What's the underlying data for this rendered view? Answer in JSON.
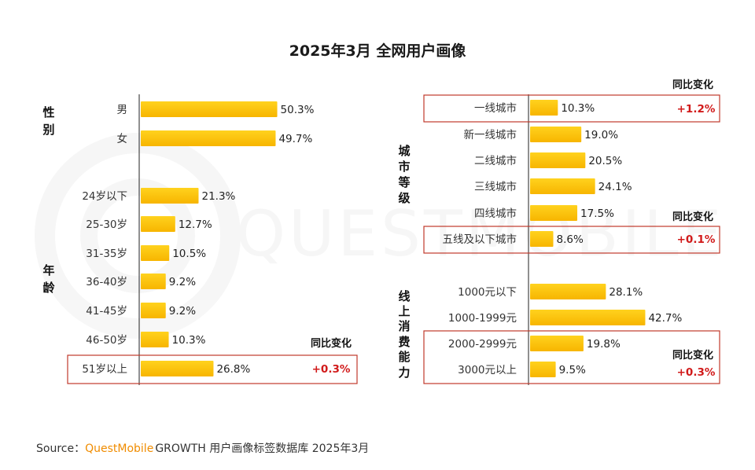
{
  "title": "2025年3月 全网用户画像",
  "source": {
    "prefix": "Source：",
    "brand": "QuestMobile",
    "rest": "GROWTH 用户画像标签数据库 2025年3月"
  },
  "watermark": "QUESTMOBILE",
  "colors": {
    "bar_top": "#ffd21e",
    "bar_bottom": "#f7b500",
    "highlight_border": "#c0392b",
    "change_text": "#d11a1a"
  },
  "chart_data": [
    {
      "type": "bar",
      "orientation": "horizontal",
      "panel": "left",
      "groups": [
        {
          "label": "性别",
          "categories": [
            "男",
            "女"
          ],
          "values": [
            50.3,
            49.7
          ],
          "value_labels": [
            "50.3%",
            "49.7%"
          ]
        },
        {
          "label": "年龄",
          "categories": [
            "24岁以下",
            "25-30岁",
            "31-35岁",
            "36-40岁",
            "41-45岁",
            "46-50岁",
            "51岁以上"
          ],
          "values": [
            21.3,
            12.7,
            10.5,
            9.2,
            9.2,
            10.3,
            26.8
          ],
          "value_labels": [
            "21.3%",
            "12.7%",
            "10.5%",
            "9.2%",
            "9.2%",
            "10.3%",
            "26.8%"
          ]
        }
      ],
      "yoy_header": "同比变化",
      "highlights": [
        {
          "category": "51岁以上",
          "yoy_change": "+0.3%"
        }
      ]
    },
    {
      "type": "bar",
      "orientation": "horizontal",
      "panel": "right",
      "groups": [
        {
          "label": "城市等级",
          "categories": [
            "一线城市",
            "新一线城市",
            "二线城市",
            "三线城市",
            "四线城市",
            "五线及以下城市"
          ],
          "values": [
            10.3,
            19.0,
            20.5,
            24.1,
            17.5,
            8.6
          ],
          "value_labels": [
            "10.3%",
            "19.0%",
            "20.5%",
            "24.1%",
            "17.5%",
            "8.6%"
          ]
        },
        {
          "label": "线上消费能力",
          "categories": [
            "1000元以下",
            "1000-1999元",
            "2000-2999元",
            "3000元以上"
          ],
          "values": [
            28.1,
            42.7,
            19.8,
            9.5
          ],
          "value_labels": [
            "28.1%",
            "42.7%",
            "19.8%",
            "9.5%"
          ]
        }
      ],
      "yoy_header": "同比变化",
      "highlights": [
        {
          "category": "一线城市",
          "yoy_change": "+1.2%"
        },
        {
          "category": "五线及以下城市",
          "yoy_change": "+0.1%"
        },
        {
          "categories": [
            "2000-2999元",
            "3000元以上"
          ],
          "yoy_change": "+0.3%"
        }
      ]
    }
  ]
}
